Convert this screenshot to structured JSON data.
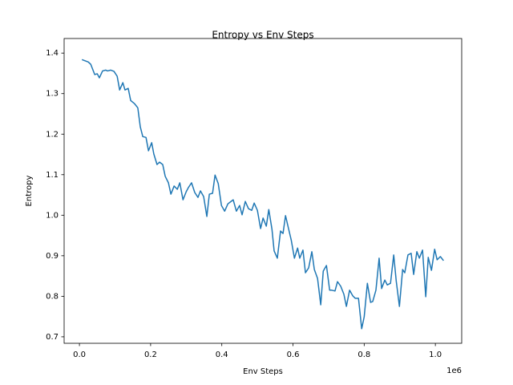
{
  "chart_data": {
    "type": "line",
    "title": "Entropy vs Env Steps",
    "xlabel": "Env Steps",
    "ylabel": "Entropy",
    "x_offset_label": "1e6",
    "xlim": [
      -0.043,
      1.074
    ],
    "ylim": [
      0.684,
      1.436
    ],
    "xticks": [
      {
        "value": 0,
        "label": "0.0"
      },
      0.2,
      0.4,
      0.6,
      0.8,
      {
        "value": 1,
        "label": "1.0"
      }
    ],
    "yticks": [
      0.7,
      0.8,
      0.9,
      {
        "value": 1,
        "label": "1.0"
      },
      1.1,
      1.2,
      1.3,
      1.4
    ],
    "grid": false,
    "x": [
      0.007,
      0.025,
      0.032,
      0.043,
      0.05,
      0.056,
      0.065,
      0.074,
      0.079,
      0.088,
      0.097,
      0.106,
      0.113,
      0.122,
      0.128,
      0.137,
      0.144,
      0.155,
      0.164,
      0.171,
      0.178,
      0.187,
      0.194,
      0.203,
      0.209,
      0.218,
      0.225,
      0.234,
      0.241,
      0.25,
      0.257,
      0.266,
      0.275,
      0.282,
      0.291,
      0.3,
      0.306,
      0.315,
      0.324,
      0.333,
      0.34,
      0.349,
      0.358,
      0.365,
      0.374,
      0.381,
      0.39,
      0.399,
      0.408,
      0.417,
      0.426,
      0.432,
      0.441,
      0.45,
      0.457,
      0.466,
      0.475,
      0.484,
      0.491,
      0.5,
      0.509,
      0.516,
      0.525,
      0.532,
      0.541,
      0.547,
      0.556,
      0.565,
      0.572,
      0.579,
      0.588,
      0.595,
      0.604,
      0.613,
      0.619,
      0.628,
      0.635,
      0.644,
      0.653,
      0.66,
      0.669,
      0.678,
      0.685,
      0.694,
      0.703,
      0.709,
      0.718,
      0.725,
      0.734,
      0.743,
      0.75,
      0.759,
      0.768,
      0.775,
      0.784,
      0.793,
      0.8,
      0.809,
      0.818,
      0.824,
      0.833,
      0.842,
      0.849,
      0.858,
      0.865,
      0.874,
      0.883,
      0.89,
      0.899,
      0.908,
      0.914,
      0.923,
      0.932,
      0.939,
      0.948,
      0.955,
      0.964,
      0.973,
      0.98,
      0.989,
      0.998,
      1.005,
      1.014,
      1.023
    ],
    "series": [
      {
        "color": "#1f77b4",
        "values": [
          1.384,
          1.378,
          1.372,
          1.347,
          1.349,
          1.339,
          1.356,
          1.358,
          1.356,
          1.358,
          1.355,
          1.343,
          1.309,
          1.327,
          1.309,
          1.313,
          1.283,
          1.275,
          1.265,
          1.218,
          1.194,
          1.192,
          1.159,
          1.179,
          1.151,
          1.125,
          1.131,
          1.125,
          1.096,
          1.08,
          1.052,
          1.072,
          1.064,
          1.08,
          1.038,
          1.058,
          1.068,
          1.08,
          1.056,
          1.044,
          1.06,
          1.046,
          0.997,
          1.052,
          1.054,
          1.099,
          1.078,
          1.024,
          1.01,
          1.028,
          1.034,
          1.038,
          1.01,
          1.024,
          1.001,
          1.034,
          1.016,
          1.012,
          1.03,
          1.012,
          0.967,
          0.993,
          0.973,
          1.014,
          0.965,
          0.912,
          0.894,
          0.961,
          0.955,
          0.999,
          0.965,
          0.939,
          0.894,
          0.919,
          0.894,
          0.914,
          0.858,
          0.87,
          0.91,
          0.866,
          0.844,
          0.779,
          0.862,
          0.876,
          0.815,
          0.815,
          0.813,
          0.836,
          0.825,
          0.805,
          0.775,
          0.815,
          0.801,
          0.795,
          0.795,
          0.72,
          0.749,
          0.832,
          0.785,
          0.787,
          0.815,
          0.894,
          0.819,
          0.84,
          0.828,
          0.832,
          0.902,
          0.838,
          0.775,
          0.866,
          0.858,
          0.902,
          0.906,
          0.854,
          0.91,
          0.894,
          0.914,
          0.799,
          0.896,
          0.864,
          0.916,
          0.89,
          0.898,
          0.888
        ]
      }
    ]
  }
}
